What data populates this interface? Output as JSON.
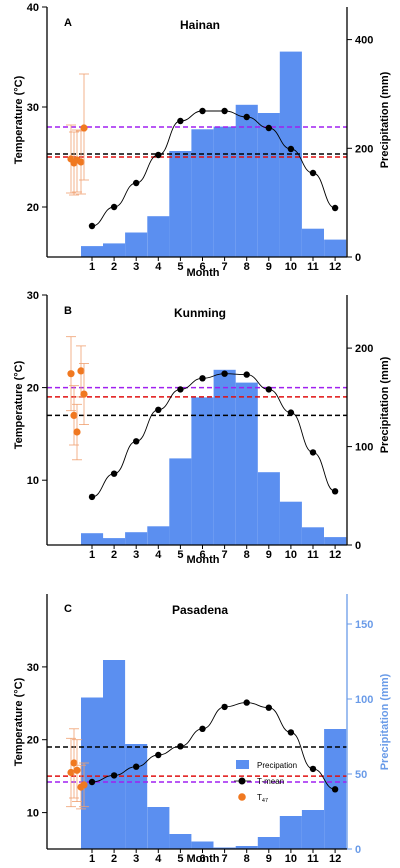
{
  "legend": {
    "precip_label": "Precipation",
    "tmean_label": "T-mean",
    "t47_label": "T",
    "t47_sub": "47"
  },
  "colors": {
    "precip": "#5b8ff0",
    "tmean": "#000000",
    "t47": "#f07820",
    "purple_line": "#a020f0",
    "red_line": "#e01010",
    "black_line": "#000000",
    "pasadena_right_axis": "#6a9be8"
  },
  "chart_data": [
    {
      "type": "bar",
      "panel_letter": "A",
      "title": "Hainan",
      "xlabel": "Month",
      "ylabel_left": "Temperature (°C)",
      "ylabel_right": "Precipitation (mm)",
      "categories": [
        "1",
        "2",
        "3",
        "4",
        "5",
        "6",
        "7",
        "8",
        "9",
        "10",
        "11",
        "12"
      ],
      "temp_ylim": [
        15,
        40
      ],
      "temp_ticks": [
        20,
        30,
        40
      ],
      "precip_ylim": [
        0,
        460
      ],
      "precip_ticks": [
        0,
        200,
        400
      ],
      "series": [
        {
          "name": "Precipation",
          "values": [
            20,
            25,
            45,
            75,
            195,
            235,
            240,
            280,
            265,
            378,
            52,
            32
          ]
        },
        {
          "name": "T-mean",
          "values": [
            18.1,
            20.0,
            22.4,
            25.2,
            28.6,
            29.6,
            29.6,
            29.0,
            27.9,
            25.8,
            23.4,
            19.9
          ]
        }
      ],
      "t47_points": [
        {
          "value": 24.8,
          "err": [
            21.4,
            28.2
          ]
        },
        {
          "value": 24.4,
          "err": [
            21.2,
            27.5
          ]
        },
        {
          "value": 24.7,
          "err": [
            21.5,
            27.7
          ]
        },
        {
          "value": 24.5,
          "err": [
            21.3,
            27.6
          ]
        },
        {
          "value": 27.9,
          "err": [
            22.7,
            33.3
          ]
        }
      ],
      "reference_lines": [
        {
          "color": "purple",
          "value": 28.0
        },
        {
          "color": "red",
          "value": 25.0
        },
        {
          "color": "black",
          "value": 25.3
        }
      ]
    },
    {
      "type": "bar",
      "panel_letter": "B",
      "title": "Kunming",
      "xlabel": "Month",
      "ylabel_left": "Temperature (°C)",
      "ylabel_right": "Precipitation (mm)",
      "categories": [
        "1",
        "2",
        "3",
        "4",
        "5",
        "6",
        "7",
        "8",
        "9",
        "10",
        "11",
        "12"
      ],
      "temp_ylim": [
        3,
        30
      ],
      "temp_ticks": [
        10,
        20,
        30
      ],
      "precip_ylim": [
        0,
        254
      ],
      "precip_ticks": [
        0,
        100,
        200
      ],
      "series": [
        {
          "name": "Precipation",
          "values": [
            12,
            7,
            13,
            19,
            88,
            150,
            178,
            165,
            74,
            44,
            18,
            8
          ]
        },
        {
          "name": "T-mean",
          "values": [
            8.2,
            10.7,
            14.2,
            17.6,
            19.8,
            21.0,
            21.5,
            21.4,
            19.8,
            17.3,
            13.0,
            8.8
          ]
        }
      ],
      "t47_points": [
        {
          "value": 21.5,
          "err": [
            17.5,
            25.5
          ]
        },
        {
          "value": 17.0,
          "err": [
            13.8,
            20.2
          ]
        },
        {
          "value": 15.2,
          "err": [
            12.2,
            18.2
          ]
        },
        {
          "value": 21.8,
          "err": [
            19.0,
            24.5
          ]
        },
        {
          "value": 19.3,
          "err": [
            16.0,
            22.6
          ]
        }
      ],
      "reference_lines": [
        {
          "color": "purple",
          "value": 20.0
        },
        {
          "color": "red",
          "value": 19.0
        },
        {
          "color": "black",
          "value": 17.0
        }
      ]
    },
    {
      "type": "bar",
      "panel_letter": "C",
      "title": "Pasadena",
      "xlabel": "Month",
      "ylabel_left": "Temperature (°C)",
      "ylabel_right": "Precipitation (mm)",
      "categories": [
        "1",
        "2",
        "3",
        "4",
        "5",
        "6",
        "7",
        "8",
        "9",
        "10",
        "11",
        "12"
      ],
      "temp_ylim": [
        5,
        40
      ],
      "temp_ticks": [
        10,
        20,
        30
      ],
      "precip_ylim": [
        0,
        170
      ],
      "precip_ticks": [
        0,
        50,
        100,
        150
      ],
      "series": [
        {
          "name": "Precipation",
          "values": [
            101,
            126,
            70,
            28,
            10,
            5,
            1,
            2,
            8,
            22,
            26,
            80
          ]
        },
        {
          "name": "T-mean",
          "values": [
            14.2,
            15.1,
            16.3,
            17.9,
            19.1,
            21.5,
            24.5,
            25.1,
            24.4,
            21.0,
            16.0,
            13.2
          ]
        }
      ],
      "t47_points": [
        {
          "value": 15.5,
          "err": [
            10.8,
            20.2
          ]
        },
        {
          "value": 16.8,
          "err": [
            12.0,
            21.5
          ]
        },
        {
          "value": 15.8,
          "err": [
            11.5,
            20.0
          ]
        },
        {
          "value": 13.5,
          "err": [
            10.5,
            16.5
          ]
        },
        {
          "value": 13.8,
          "err": [
            10.8,
            16.8
          ]
        }
      ],
      "reference_lines": [
        {
          "color": "black",
          "value": 19.0
        },
        {
          "color": "red",
          "value": 15.0
        },
        {
          "color": "purple",
          "value": 14.2
        }
      ]
    }
  ]
}
